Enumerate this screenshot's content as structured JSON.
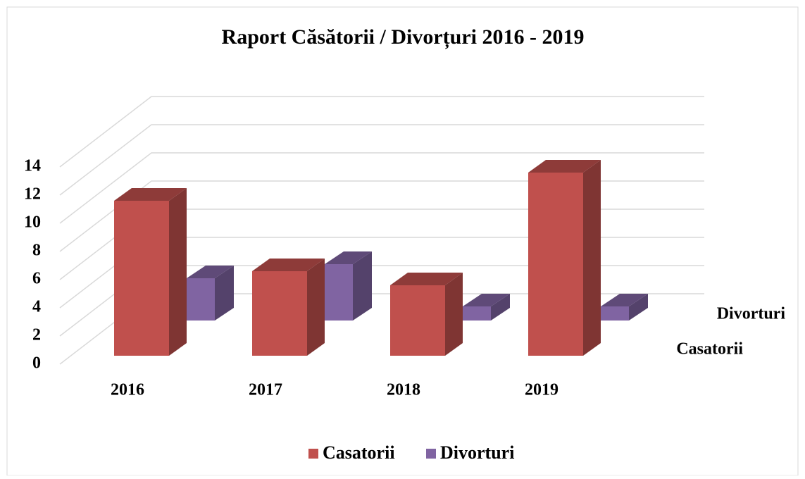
{
  "chart_data": {
    "type": "bar3d",
    "title": "Raport Căsătorii / Divorțuri 2016 - 2019",
    "categories": [
      "2016",
      "2017",
      "2018",
      "2019"
    ],
    "series": [
      {
        "name": "Casatorii",
        "color": "#c0504d",
        "values": [
          11,
          6,
          5,
          13
        ]
      },
      {
        "name": "Divorturi",
        "color": "#8064a2",
        "values": [
          3,
          4,
          1,
          1
        ]
      }
    ],
    "ylim": [
      0,
      14
    ],
    "yticks": [
      0,
      2,
      4,
      6,
      8,
      10,
      12,
      14
    ],
    "grid": true,
    "legend": "bottom"
  }
}
